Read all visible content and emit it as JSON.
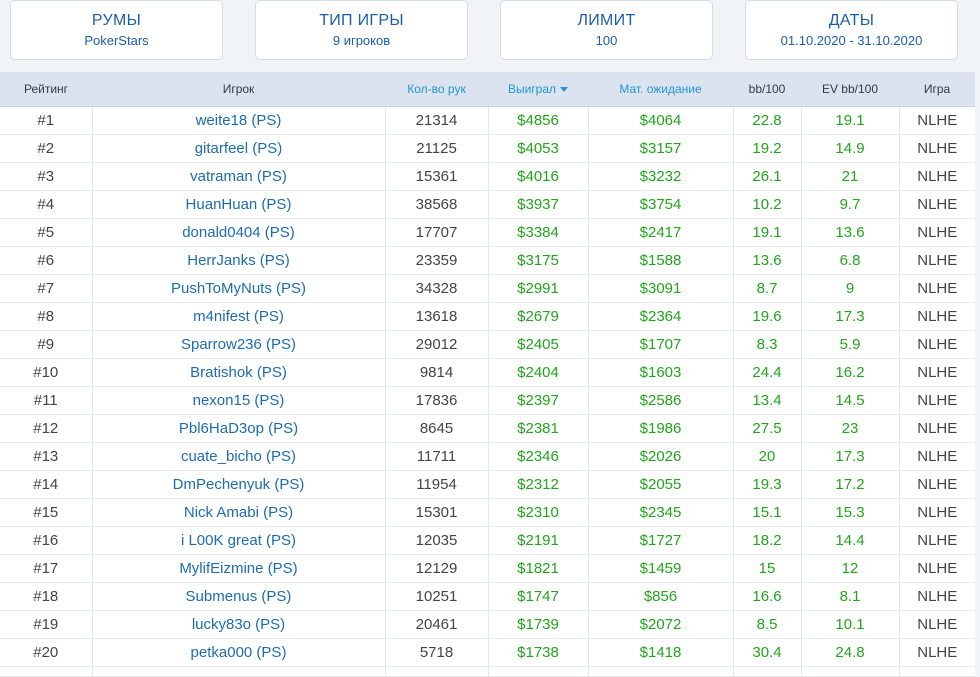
{
  "filters": [
    {
      "title": "РУМЫ",
      "value": "PokerStars"
    },
    {
      "title": "ТИП ИГРЫ",
      "value": "9 игроков"
    },
    {
      "title": "ЛИМИТ",
      "value": "100"
    },
    {
      "title": "ДАТЫ",
      "value": "01.10.2020 - 31.10.2020"
    }
  ],
  "table": {
    "headers": [
      "Рейтинг",
      "Игрок",
      "Кол-во рук",
      "Выиграл",
      "Мат. ожидание",
      "bb/100",
      "EV bb/100",
      "Игра"
    ],
    "sorted_column": "Выиграл",
    "sort_direction": "desc",
    "rows": [
      {
        "rank": "#1",
        "player": "weite18 (PS)",
        "hands": "21314",
        "won": "$4856",
        "ev": "$4064",
        "bb100": "22.8",
        "evbb100": "19.1",
        "game": "NLHE"
      },
      {
        "rank": "#2",
        "player": "gitarfeel (PS)",
        "hands": "21125",
        "won": "$4053",
        "ev": "$3157",
        "bb100": "19.2",
        "evbb100": "14.9",
        "game": "NLHE"
      },
      {
        "rank": "#3",
        "player": "vatraman (PS)",
        "hands": "15361",
        "won": "$4016",
        "ev": "$3232",
        "bb100": "26.1",
        "evbb100": "21",
        "game": "NLHE"
      },
      {
        "rank": "#4",
        "player": "HuanHuan (PS)",
        "hands": "38568",
        "won": "$3937",
        "ev": "$3754",
        "bb100": "10.2",
        "evbb100": "9.7",
        "game": "NLHE"
      },
      {
        "rank": "#5",
        "player": "donald0404 (PS)",
        "hands": "17707",
        "won": "$3384",
        "ev": "$2417",
        "bb100": "19.1",
        "evbb100": "13.6",
        "game": "NLHE"
      },
      {
        "rank": "#6",
        "player": "HerrJanks (PS)",
        "hands": "23359",
        "won": "$3175",
        "ev": "$1588",
        "bb100": "13.6",
        "evbb100": "6.8",
        "game": "NLHE"
      },
      {
        "rank": "#7",
        "player": "PushToMyNuts (PS)",
        "hands": "34328",
        "won": "$2991",
        "ev": "$3091",
        "bb100": "8.7",
        "evbb100": "9",
        "game": "NLHE"
      },
      {
        "rank": "#8",
        "player": "m4nifest (PS)",
        "hands": "13618",
        "won": "$2679",
        "ev": "$2364",
        "bb100": "19.6",
        "evbb100": "17.3",
        "game": "NLHE"
      },
      {
        "rank": "#9",
        "player": "Sparrow236 (PS)",
        "hands": "29012",
        "won": "$2405",
        "ev": "$1707",
        "bb100": "8.3",
        "evbb100": "5.9",
        "game": "NLHE"
      },
      {
        "rank": "#10",
        "player": "Bratishok (PS)",
        "hands": "9814",
        "won": "$2404",
        "ev": "$1603",
        "bb100": "24.4",
        "evbb100": "16.2",
        "game": "NLHE"
      },
      {
        "rank": "#11",
        "player": "nexon15 (PS)",
        "hands": "17836",
        "won": "$2397",
        "ev": "$2586",
        "bb100": "13.4",
        "evbb100": "14.5",
        "game": "NLHE"
      },
      {
        "rank": "#12",
        "player": "Pbl6HaD3op (PS)",
        "hands": "8645",
        "won": "$2381",
        "ev": "$1986",
        "bb100": "27.5",
        "evbb100": "23",
        "game": "NLHE"
      },
      {
        "rank": "#13",
        "player": "cuate_bicho (PS)",
        "hands": "11711",
        "won": "$2346",
        "ev": "$2026",
        "bb100": "20",
        "evbb100": "17.3",
        "game": "NLHE"
      },
      {
        "rank": "#14",
        "player": "DmPechenyuk (PS)",
        "hands": "11954",
        "won": "$2312",
        "ev": "$2055",
        "bb100": "19.3",
        "evbb100": "17.2",
        "game": "NLHE"
      },
      {
        "rank": "#15",
        "player": "Nick Amabi (PS)",
        "hands": "15301",
        "won": "$2310",
        "ev": "$2345",
        "bb100": "15.1",
        "evbb100": "15.3",
        "game": "NLHE"
      },
      {
        "rank": "#16",
        "player": "i L00K great (PS)",
        "hands": "12035",
        "won": "$2191",
        "ev": "$1727",
        "bb100": "18.2",
        "evbb100": "14.4",
        "game": "NLHE"
      },
      {
        "rank": "#17",
        "player": "MylifEizmine (PS)",
        "hands": "12129",
        "won": "$1821",
        "ev": "$1459",
        "bb100": "15",
        "evbb100": "12",
        "game": "NLHE"
      },
      {
        "rank": "#18",
        "player": "Submenus (PS)",
        "hands": "10251",
        "won": "$1747",
        "ev": "$856",
        "bb100": "16.6",
        "evbb100": "8.1",
        "game": "NLHE"
      },
      {
        "rank": "#19",
        "player": "lucky83o (PS)",
        "hands": "20461",
        "won": "$1739",
        "ev": "$2072",
        "bb100": "8.5",
        "evbb100": "10.1",
        "game": "NLHE"
      },
      {
        "rank": "#20",
        "player": "petka000 (PS)",
        "hands": "5718",
        "won": "$1738",
        "ev": "$1418",
        "bb100": "30.4",
        "evbb100": "24.8",
        "game": "NLHE"
      }
    ]
  },
  "colors": {
    "accent_blue": "#1c5fa8",
    "link_blue": "#1e6cb0",
    "sort_blue": "#2196d3",
    "positive_green": "#22a51c",
    "header_bg": "#dbe4ee",
    "page_bg": "#f1f4f7"
  },
  "icons": {
    "sort": "sort-desc-icon"
  }
}
